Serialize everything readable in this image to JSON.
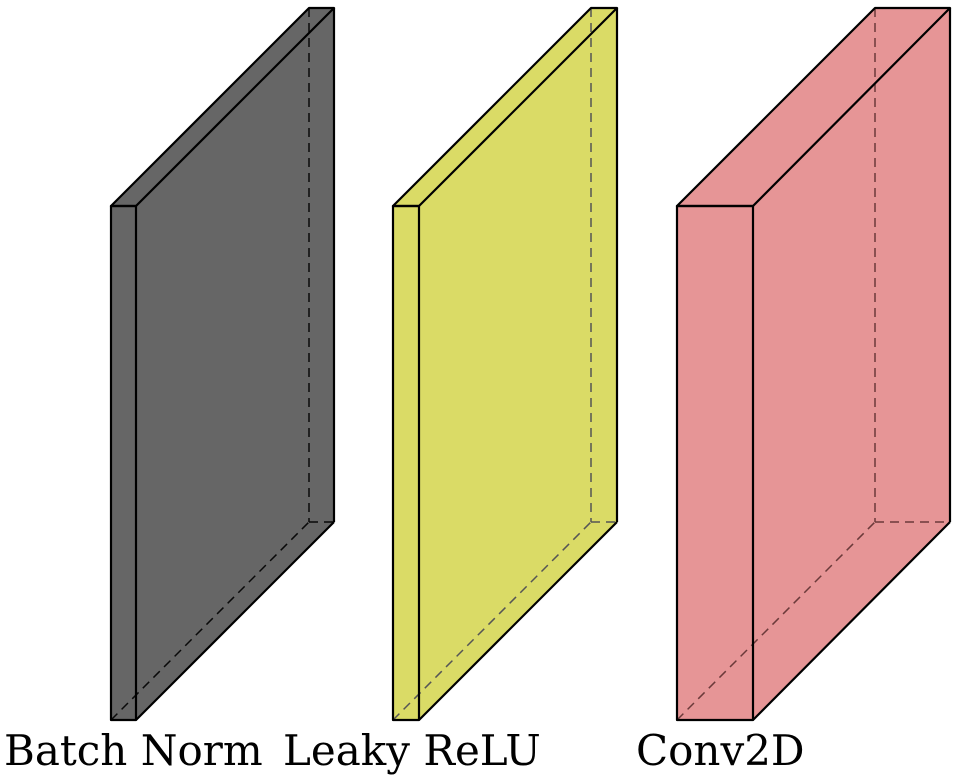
{
  "layers": [
    {
      "label": "Batch Norm",
      "color": "#666666"
    },
    {
      "label": "Leaky ReLU",
      "color": "#dadb66"
    },
    {
      "label": "Conv2D",
      "color": "#e69596"
    }
  ]
}
